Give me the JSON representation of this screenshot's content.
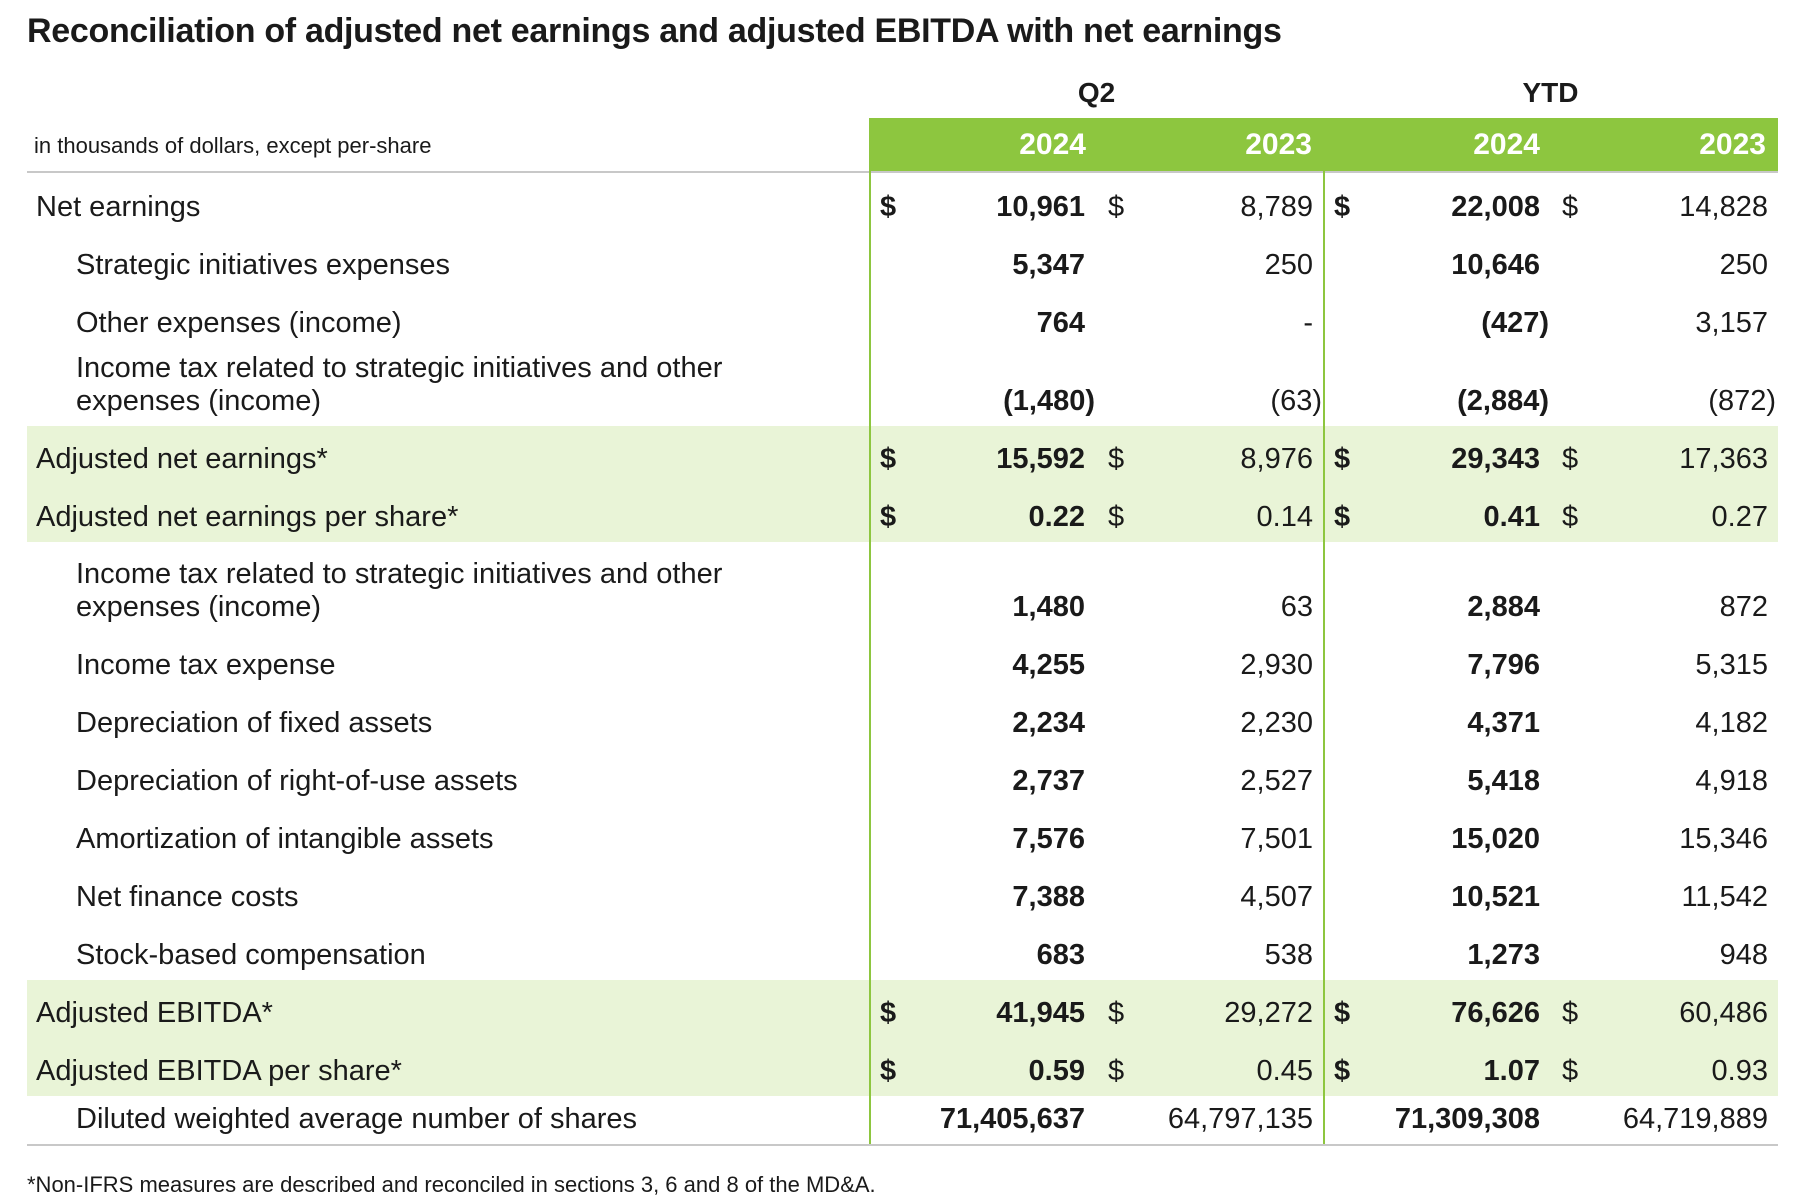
{
  "title": "Reconciliation of adjusted net earnings and adjusted EBITDA with net earnings",
  "units_note": "in thousands of dollars, except per-share",
  "column_groups": [
    "Q2",
    "YTD"
  ],
  "years": [
    "2024",
    "2023",
    "2024",
    "2023"
  ],
  "colors": {
    "header_green": "#8dc63f",
    "highlight_row": "#e9f4d7",
    "text": "#1a1a1a"
  },
  "rows": [
    {
      "label": "Net earnings",
      "indent": false,
      "highlight": false,
      "currency": "$",
      "values": [
        "10,961",
        "8,789",
        "22,008",
        "14,828"
      ]
    },
    {
      "label": "Strategic initiatives expenses",
      "indent": true,
      "highlight": false,
      "currency": "",
      "values": [
        "5,347",
        "250",
        "10,646",
        "250"
      ]
    },
    {
      "label": "Other expenses (income)",
      "indent": true,
      "highlight": false,
      "currency": "",
      "values": [
        "764",
        "-",
        "(427)",
        "3,157"
      ]
    },
    {
      "label_lines": [
        "Income tax related to strategic initiatives and other",
        "expenses (income)"
      ],
      "indent": true,
      "highlight": false,
      "currency": "",
      "values": [
        "(1,480)",
        "(63)",
        "(2,884)",
        "(872)"
      ]
    },
    {
      "label": "Adjusted net earnings*",
      "indent": false,
      "highlight": true,
      "currency": "$",
      "values": [
        "15,592",
        "8,976",
        "29,343",
        "17,363"
      ]
    },
    {
      "label": "Adjusted net earnings per share*",
      "indent": false,
      "highlight": true,
      "currency": "$",
      "values": [
        "0.22",
        "0.14",
        "0.41",
        "0.27"
      ]
    },
    {
      "label_lines": [
        "Income tax related to strategic initiatives and other",
        "expenses (income)"
      ],
      "indent": true,
      "highlight": false,
      "currency": "",
      "values": [
        "1,480",
        "63",
        "2,884",
        "872"
      ]
    },
    {
      "label": "Income tax expense",
      "indent": true,
      "highlight": false,
      "currency": "",
      "values": [
        "4,255",
        "2,930",
        "7,796",
        "5,315"
      ]
    },
    {
      "label": "Depreciation of fixed assets",
      "indent": true,
      "highlight": false,
      "currency": "",
      "values": [
        "2,234",
        "2,230",
        "4,371",
        "4,182"
      ]
    },
    {
      "label": "Depreciation of right-of-use assets",
      "indent": true,
      "highlight": false,
      "currency": "",
      "values": [
        "2,737",
        "2,527",
        "5,418",
        "4,918"
      ]
    },
    {
      "label": "Amortization of intangible assets",
      "indent": true,
      "highlight": false,
      "currency": "",
      "values": [
        "7,576",
        "7,501",
        "15,020",
        "15,346"
      ]
    },
    {
      "label": "Net finance costs",
      "indent": true,
      "highlight": false,
      "currency": "",
      "values": [
        "7,388",
        "4,507",
        "10,521",
        "11,542"
      ]
    },
    {
      "label": "Stock-based compensation",
      "indent": true,
      "highlight": false,
      "currency": "",
      "values": [
        "683",
        "538",
        "1,273",
        "948"
      ]
    },
    {
      "label": "Adjusted EBITDA*",
      "indent": false,
      "highlight": true,
      "currency": "$",
      "values": [
        "41,945",
        "29,272",
        "76,626",
        "60,486"
      ]
    },
    {
      "label": "Adjusted EBITDA per share*",
      "indent": false,
      "highlight": true,
      "currency": "$",
      "values": [
        "0.59",
        "0.45",
        "1.07",
        "0.93"
      ]
    },
    {
      "label": "Diluted weighted average number of shares",
      "indent": true,
      "highlight": false,
      "currency": "",
      "values": [
        "71,405,637",
        "64,797,135",
        "71,309,308",
        "64,719,889"
      ]
    }
  ],
  "footnote": "*Non-IFRS measures are described and reconciled in sections 3, 6 and 8 of the MD&A."
}
